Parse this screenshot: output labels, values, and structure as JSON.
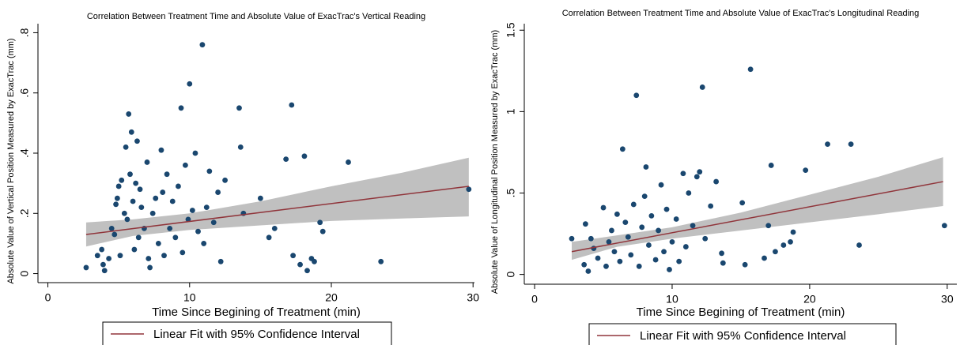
{
  "chart_data": [
    {
      "type": "scatter",
      "title": "Correlation Between Treatment Time and Absolute Value of ExacTrac's Vertical Reading",
      "x_label": "Time Since Begining of Treatment (min)",
      "y_label": "Absolute Value of Vertical Position Measured by ExacTrac (mm)",
      "xlim": [
        -0.7,
        30.1
      ],
      "ylim": [
        -0.03,
        0.83
      ],
      "xticks": [
        0,
        10,
        20,
        30
      ],
      "yticks": [
        0,
        {
          "value": 0.2,
          "label": ".2"
        },
        {
          "value": 0.4,
          "label": ".4"
        },
        {
          "value": 0.6,
          "label": ".6"
        },
        {
          "value": 0.8,
          "label": ".8"
        }
      ],
      "series": [
        {
          "kind": "points",
          "color": "#1a476f",
          "x": [
            2.7,
            3.5,
            3.8,
            3.9,
            4,
            4.3,
            4.5,
            4.7,
            4.8,
            4.9,
            5,
            5.1,
            5.2,
            5.4,
            5.5,
            5.6,
            5.7,
            5.8,
            5.9,
            6,
            6.1,
            6.2,
            6.3,
            6.4,
            6.5,
            6.6,
            6.8,
            7,
            7.1,
            7.2,
            7.4,
            7.6,
            7.8,
            8,
            8.1,
            8.2,
            8.4,
            8.6,
            8.8,
            9,
            9.2,
            9.4,
            9.5,
            9.7,
            9.9,
            10,
            10.2,
            10.4,
            10.6,
            10.9,
            11,
            11.2,
            11.4,
            11.7,
            12,
            12.2,
            12.5,
            13.5,
            13.6,
            13.8,
            15,
            15.6,
            16,
            16.8,
            17.2,
            17.3,
            17.8,
            18.1,
            18.3,
            18.6,
            18.8,
            19.2,
            19.4,
            21.2,
            23.5,
            29.7
          ],
          "values": [
            0.02,
            0.06,
            0.08,
            0.03,
            0.01,
            0.05,
            0.15,
            0.13,
            0.23,
            0.25,
            0.29,
            0.06,
            0.31,
            0.2,
            0.42,
            0.18,
            0.53,
            0.33,
            0.47,
            0.24,
            0.08,
            0.3,
            0.44,
            0.12,
            0.28,
            0.22,
            0.15,
            0.37,
            0.05,
            0.02,
            0.2,
            0.25,
            0.1,
            0.41,
            0.27,
            0.06,
            0.33,
            0.15,
            0.24,
            0.12,
            0.29,
            0.55,
            0.07,
            0.36,
            0.18,
            0.63,
            0.21,
            0.4,
            0.14,
            0.76,
            0.1,
            0.22,
            0.34,
            0.17,
            0.27,
            0.04,
            0.31,
            0.55,
            0.42,
            0.2,
            0.25,
            0.12,
            0.15,
            0.38,
            0.56,
            0.06,
            0.03,
            0.39,
            0.01,
            0.05,
            0.04,
            0.17,
            0.14,
            0.37,
            0.04,
            0.28
          ]
        },
        {
          "kind": "band",
          "color": "#c0c0c0",
          "x": [
            2.7,
            6,
            10,
            15,
            20,
            25,
            29.7
          ],
          "lower": [
            0.09,
            0.125,
            0.145,
            0.16,
            0.175,
            0.183,
            0.19
          ],
          "upper": [
            0.17,
            0.18,
            0.2,
            0.24,
            0.29,
            0.335,
            0.385
          ]
        },
        {
          "kind": "line",
          "name": "Linear Fit with 95% Confidence Interval",
          "color": "#90353b",
          "x": [
            2.7,
            29.7
          ],
          "values": [
            0.13,
            0.29
          ]
        }
      ]
    },
    {
      "type": "scatter",
      "title": "Correlation Between Treatment Time and Absolute Value of ExacTrac's Longitudinal Reading",
      "x_label": "Time Since Begining of Treatment (min)",
      "y_label": "Absolute Value of Longitudinal Position Measured by ExacTrac (mm)",
      "xlim": [
        -0.75,
        30.7
      ],
      "ylim": [
        -0.06,
        1.54
      ],
      "xticks": [
        0,
        10,
        20,
        30
      ],
      "yticks": [
        0,
        {
          "value": 0.5,
          "label": ".5"
        },
        1,
        1.5
      ],
      "series": [
        {
          "kind": "points",
          "color": "#1a476f",
          "x": [
            2.7,
            3.6,
            3.7,
            3.9,
            4.1,
            4.3,
            4.6,
            5,
            5.2,
            5.4,
            5.6,
            5.8,
            6,
            6.2,
            6.4,
            6.6,
            6.8,
            7,
            7.2,
            7.4,
            7.6,
            7.8,
            8,
            8.1,
            8.3,
            8.5,
            8.8,
            9,
            9.2,
            9.4,
            9.6,
            9.8,
            10,
            10.3,
            10.5,
            10.8,
            11,
            11.2,
            11.5,
            11.8,
            12,
            12.2,
            12.4,
            12.8,
            13.2,
            13.6,
            13.7,
            15.1,
            15.3,
            15.7,
            16.7,
            17,
            17.2,
            17.5,
            18.1,
            18.6,
            18.8,
            19.7,
            21.3,
            23,
            23.6,
            29.8
          ],
          "values": [
            0.22,
            0.06,
            0.31,
            0.02,
            0.22,
            0.16,
            0.1,
            0.41,
            0.05,
            0.2,
            0.27,
            0.14,
            0.37,
            0.08,
            0.77,
            0.32,
            0.23,
            0.12,
            0.43,
            1.1,
            0.05,
            0.29,
            0.48,
            0.66,
            0.18,
            0.36,
            0.09,
            0.27,
            0.55,
            0.14,
            0.4,
            0.03,
            0.2,
            0.34,
            0.08,
            0.62,
            0.17,
            0.5,
            0.3,
            0.6,
            0.63,
            1.15,
            0.22,
            0.42,
            0.57,
            0.13,
            0.07,
            0.44,
            0.06,
            1.26,
            0.1,
            0.3,
            0.67,
            0.14,
            0.18,
            0.2,
            0.26,
            0.64,
            0.8,
            0.8,
            0.18,
            0.3
          ]
        },
        {
          "kind": "band",
          "color": "#c0c0c0",
          "x": [
            2.7,
            6,
            10,
            15,
            20,
            25,
            29.7
          ],
          "lower": [
            0.09,
            0.17,
            0.22,
            0.27,
            0.32,
            0.37,
            0.42
          ],
          "upper": [
            0.2,
            0.24,
            0.29,
            0.38,
            0.49,
            0.6,
            0.72
          ]
        },
        {
          "kind": "line",
          "name": "Linear Fit with 95% Confidence Interval",
          "color": "#90353b",
          "x": [
            2.7,
            29.7
          ],
          "values": [
            0.14,
            0.57
          ]
        }
      ]
    }
  ]
}
